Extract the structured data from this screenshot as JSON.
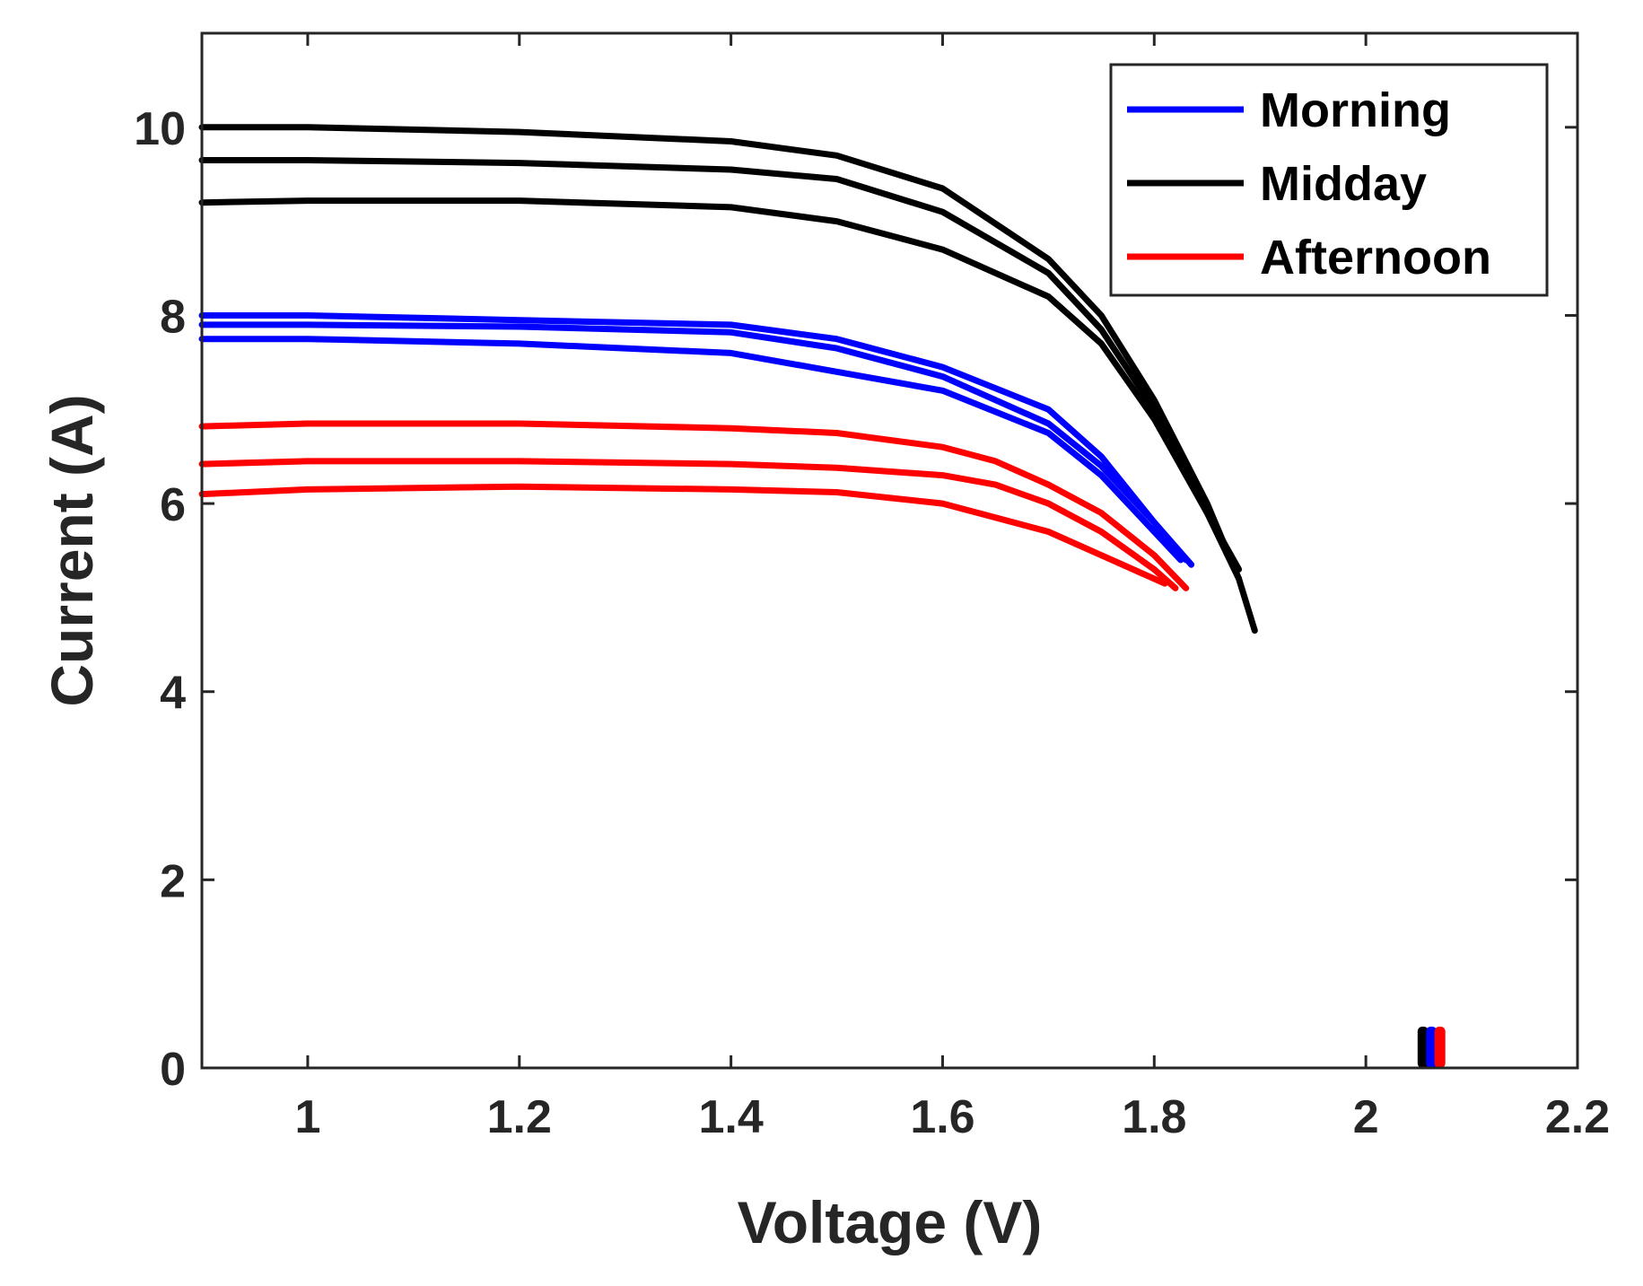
{
  "chart_data": {
    "type": "line",
    "title": "",
    "xlabel": "Voltage (V)",
    "ylabel": "Current (A)",
    "xlim": [
      0.9,
      2.2
    ],
    "ylim": [
      0,
      11
    ],
    "xticks": [
      1,
      1.2,
      1.4,
      1.6,
      1.8,
      2,
      2.2
    ],
    "xtick_labels": [
      "1",
      "1.2",
      "1.4",
      "1.6",
      "1.8",
      "2",
      "2.2"
    ],
    "yticks": [
      0,
      2,
      4,
      6,
      8,
      10
    ],
    "ytick_labels": [
      "0",
      "2",
      "4",
      "6",
      "8",
      "10"
    ],
    "grid": false,
    "legend_position": "top-right",
    "legend": [
      "Morning",
      "Midday",
      "Afternoon"
    ],
    "colors": {
      "Morning": "#0000ff",
      "Midday": "#000000",
      "Afternoon": "#ff0000"
    },
    "series": [
      {
        "name": "Morning",
        "group": "Morning",
        "x": [
          0.9,
          1.0,
          1.2,
          1.4,
          1.5,
          1.6,
          1.7,
          1.75,
          1.8,
          1.835
        ],
        "y": [
          8.0,
          8.0,
          7.95,
          7.9,
          7.75,
          7.45,
          7.0,
          6.5,
          5.8,
          5.35
        ]
      },
      {
        "name": "Morning",
        "group": "Morning",
        "x": [
          0.9,
          1.0,
          1.2,
          1.4,
          1.5,
          1.6,
          1.7,
          1.75,
          1.8,
          1.83
        ],
        "y": [
          7.9,
          7.9,
          7.88,
          7.82,
          7.65,
          7.35,
          6.85,
          6.4,
          5.8,
          5.4
        ]
      },
      {
        "name": "Morning",
        "group": "Morning",
        "x": [
          0.9,
          1.0,
          1.2,
          1.4,
          1.5,
          1.6,
          1.7,
          1.75,
          1.8,
          1.825
        ],
        "y": [
          7.75,
          7.75,
          7.7,
          7.6,
          7.4,
          7.2,
          6.75,
          6.3,
          5.7,
          5.4
        ]
      },
      {
        "name": "Midday",
        "group": "Midday",
        "x": [
          0.9,
          1.0,
          1.2,
          1.4,
          1.5,
          1.6,
          1.7,
          1.75,
          1.8,
          1.85,
          1.88,
          1.895
        ],
        "y": [
          10.0,
          10.0,
          9.95,
          9.85,
          9.7,
          9.35,
          8.6,
          8.0,
          7.1,
          6.0,
          5.2,
          4.65
        ]
      },
      {
        "name": "Midday",
        "group": "Midday",
        "x": [
          0.9,
          1.0,
          1.2,
          1.4,
          1.5,
          1.6,
          1.7,
          1.75,
          1.8,
          1.85,
          1.88
        ],
        "y": [
          9.65,
          9.65,
          9.62,
          9.55,
          9.45,
          9.1,
          8.45,
          7.85,
          7.0,
          5.9,
          5.2
        ]
      },
      {
        "name": "Midday",
        "group": "Midday",
        "x": [
          0.9,
          1.0,
          1.2,
          1.4,
          1.5,
          1.6,
          1.7,
          1.75,
          1.8,
          1.85,
          1.88
        ],
        "y": [
          9.2,
          9.22,
          9.22,
          9.15,
          9.0,
          8.7,
          8.2,
          7.7,
          6.9,
          5.9,
          5.3
        ]
      },
      {
        "name": "Afternoon",
        "group": "Afternoon",
        "x": [
          0.9,
          1.0,
          1.2,
          1.4,
          1.5,
          1.6,
          1.65,
          1.7,
          1.75,
          1.8,
          1.83
        ],
        "y": [
          6.82,
          6.85,
          6.85,
          6.8,
          6.75,
          6.6,
          6.45,
          6.2,
          5.9,
          5.45,
          5.1
        ]
      },
      {
        "name": "Afternoon",
        "group": "Afternoon",
        "x": [
          0.9,
          1.0,
          1.2,
          1.4,
          1.5,
          1.6,
          1.65,
          1.7,
          1.75,
          1.8,
          1.82
        ],
        "y": [
          6.42,
          6.45,
          6.45,
          6.42,
          6.38,
          6.3,
          6.2,
          6.0,
          5.7,
          5.3,
          5.1
        ]
      },
      {
        "name": "Afternoon",
        "group": "Afternoon",
        "x": [
          0.9,
          1.0,
          1.2,
          1.4,
          1.5,
          1.6,
          1.65,
          1.7,
          1.75,
          1.79,
          1.81
        ],
        "y": [
          6.1,
          6.15,
          6.18,
          6.15,
          6.12,
          6.0,
          5.85,
          5.7,
          5.45,
          5.25,
          5.15
        ]
      }
    ],
    "open_circuit_markers": [
      {
        "name": "Midday",
        "x": 2.054,
        "y": 0.15
      },
      {
        "name": "Morning",
        "x": 2.062,
        "y": 0.12
      },
      {
        "name": "Afternoon",
        "x": 2.07,
        "y": 0.1
      }
    ]
  }
}
